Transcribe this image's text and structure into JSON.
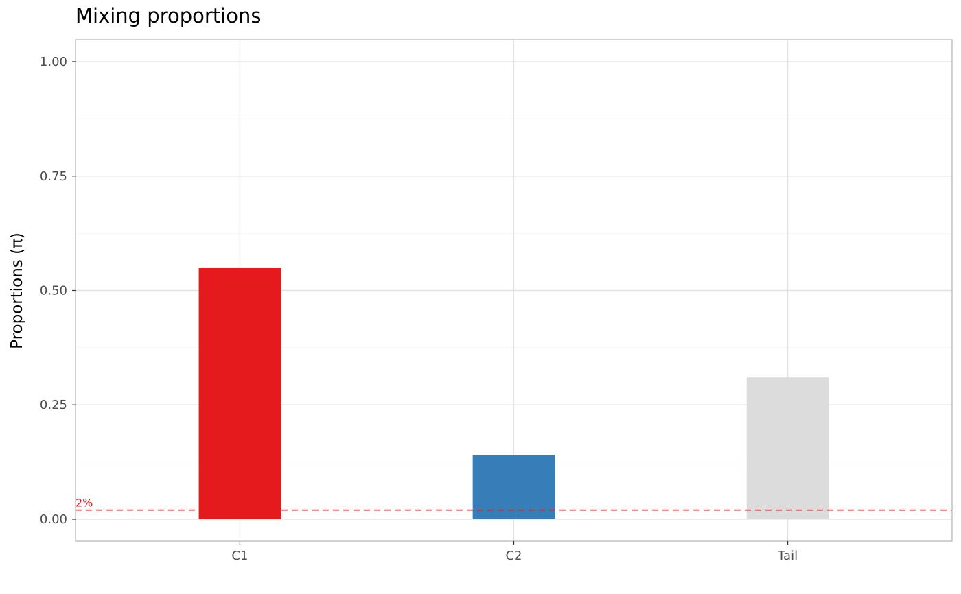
{
  "chart_data": {
    "type": "bar",
    "title": "Mixing proportions",
    "xlabel": "",
    "ylabel": "Proportions (π)",
    "categories": [
      "C1",
      "C2",
      "Tail"
    ],
    "values": [
      0.55,
      0.14,
      0.31
    ],
    "colors": [
      "#e41a1c",
      "#377eb8",
      "#dcdcdc"
    ],
    "ylim": [
      -0.048,
      1.048
    ],
    "yticks": [
      0.0,
      0.25,
      0.5,
      0.75,
      1.0
    ],
    "ytick_labels": [
      "0.00",
      "0.25",
      "0.50",
      "0.75",
      "1.00"
    ],
    "grid": true,
    "threshold": {
      "value": 0.02,
      "label": "2%",
      "color": "#e41a1c",
      "style": "dashed"
    }
  }
}
